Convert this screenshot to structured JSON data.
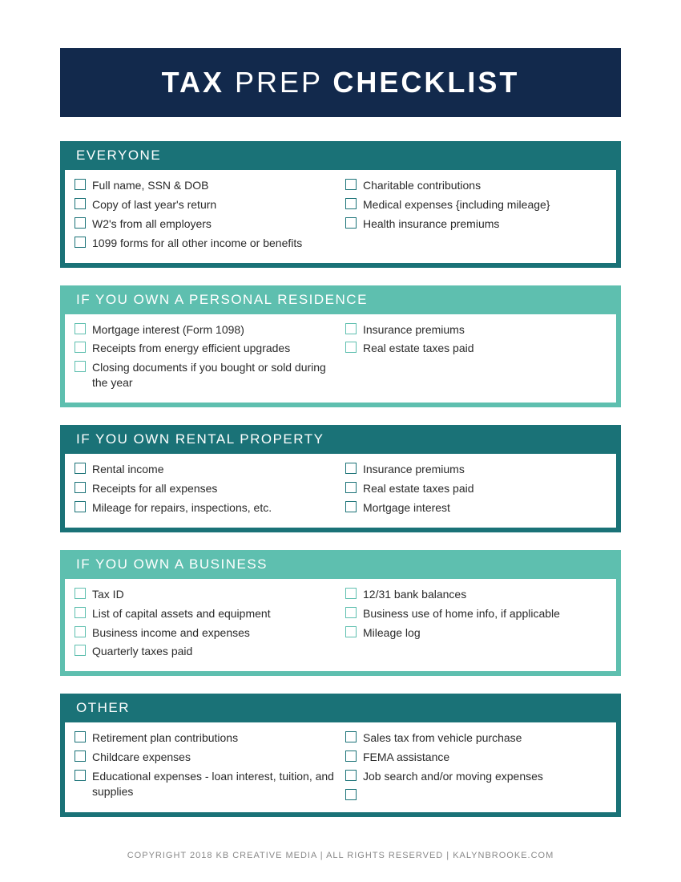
{
  "colors": {
    "navy": "#12294c",
    "dark_teal": "#1a7277",
    "light_teal": "#5ebfaf",
    "title_text": "#ffffff",
    "item_text": "#2a2a2a",
    "footer_text": "#888888",
    "background": "#ffffff"
  },
  "title": {
    "word1": "TAX",
    "word2": "PREP",
    "word3": "CHECKLIST"
  },
  "sections": [
    {
      "header": "EVERYONE",
      "header_bg": "#1a7277",
      "wrapper_bg": "#1a7277",
      "checkbox_border": "#1a7277",
      "left": [
        "Full name, SSN & DOB",
        "Copy of last year's return",
        "W2's from all employers",
        "1099 forms for all other income or benefits"
      ],
      "right": [
        "Charitable contributions",
        "Medical expenses {including mileage}",
        "Health insurance premiums"
      ]
    },
    {
      "header": "IF YOU OWN A PERSONAL RESIDENCE",
      "header_bg": "#5ebfaf",
      "wrapper_bg": "#5ebfaf",
      "checkbox_border": "#5ebfaf",
      "left": [
        "Mortgage interest (Form 1098)",
        "Receipts from energy efficient upgrades",
        "Closing documents if you bought or sold during the year"
      ],
      "right": [
        "Insurance premiums",
        "Real estate taxes paid"
      ]
    },
    {
      "header": "IF YOU OWN RENTAL PROPERTY",
      "header_bg": "#1a7277",
      "wrapper_bg": "#1a7277",
      "checkbox_border": "#1a7277",
      "left": [
        "Rental income",
        "Receipts for all expenses",
        "Mileage for repairs, inspections, etc."
      ],
      "right": [
        "Insurance premiums",
        "Real estate taxes paid",
        "Mortgage interest"
      ]
    },
    {
      "header": "IF YOU OWN A BUSINESS",
      "header_bg": "#5ebfaf",
      "wrapper_bg": "#5ebfaf",
      "checkbox_border": "#5ebfaf",
      "left": [
        "Tax ID",
        "List of capital assets and equipment",
        "Business income and expenses",
        "Quarterly taxes paid"
      ],
      "right": [
        "12/31 bank balances",
        "Business use of home info, if applicable",
        "Mileage log"
      ]
    },
    {
      "header": "OTHER",
      "header_bg": "#1a7277",
      "wrapper_bg": "#1a7277",
      "checkbox_border": "#1a7277",
      "left": [
        "Retirement plan contributions",
        "Childcare expenses",
        "Educational expenses - loan interest, tuition, and supplies"
      ],
      "right": [
        "Sales tax from vehicle purchase",
        "FEMA assistance",
        "Job search and/or moving expenses",
        ""
      ]
    }
  ],
  "footer": "COPYRIGHT 2018 KB CREATIVE MEDIA   |   ALL RIGHTS RESERVED   |   KALYNBROOKE.COM"
}
